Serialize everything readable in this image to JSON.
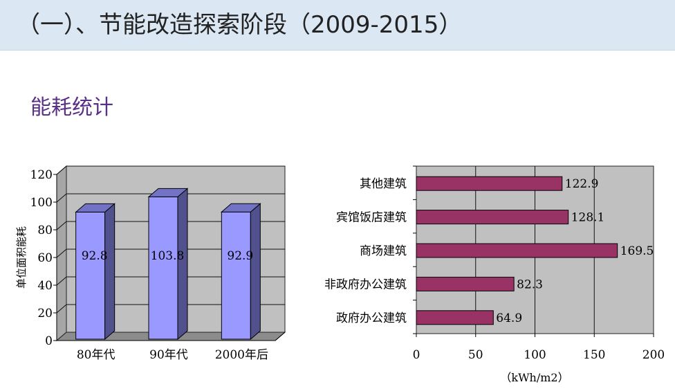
{
  "slide": {
    "title": "（一）、节能改造探索阶段（2009-2015）",
    "subtitle": "能耗统计"
  },
  "chart_data": [
    {
      "type": "bar",
      "categories": [
        "80年代",
        "90年代",
        "2000年后"
      ],
      "values": [
        92.8,
        103.8,
        92.9
      ],
      "data_labels": [
        "92.8",
        "103.8",
        "92.9"
      ],
      "ylabel": "单位面积能耗",
      "ylim": [
        0,
        120
      ],
      "yticks": [
        "0",
        "20",
        "40",
        "60",
        "80",
        "100",
        "120"
      ],
      "grid": true,
      "colors": {
        "bar_front": "#9999ff",
        "bar_side": "#51518e",
        "bar_top": "#7373c6",
        "wall": "#c0c0c0"
      }
    },
    {
      "type": "bar",
      "orientation": "horizontal",
      "categories": [
        "其他建筑",
        "宾馆饭店建筑",
        "商场建筑",
        "非政府办公建筑",
        "政府办公建筑"
      ],
      "values": [
        122.9,
        128.1,
        169.5,
        82.3,
        64.9
      ],
      "data_labels": [
        "122.9",
        "128.1",
        "169.5",
        "82.3",
        "64.9"
      ],
      "xlabel": "（kWh/m2）",
      "xlim": [
        0,
        200
      ],
      "xticks": [
        "0",
        "50",
        "100",
        "150",
        "200"
      ],
      "grid": true,
      "colors": {
        "bar": "#993366",
        "plot_bg": "#c0c0c0"
      }
    }
  ]
}
